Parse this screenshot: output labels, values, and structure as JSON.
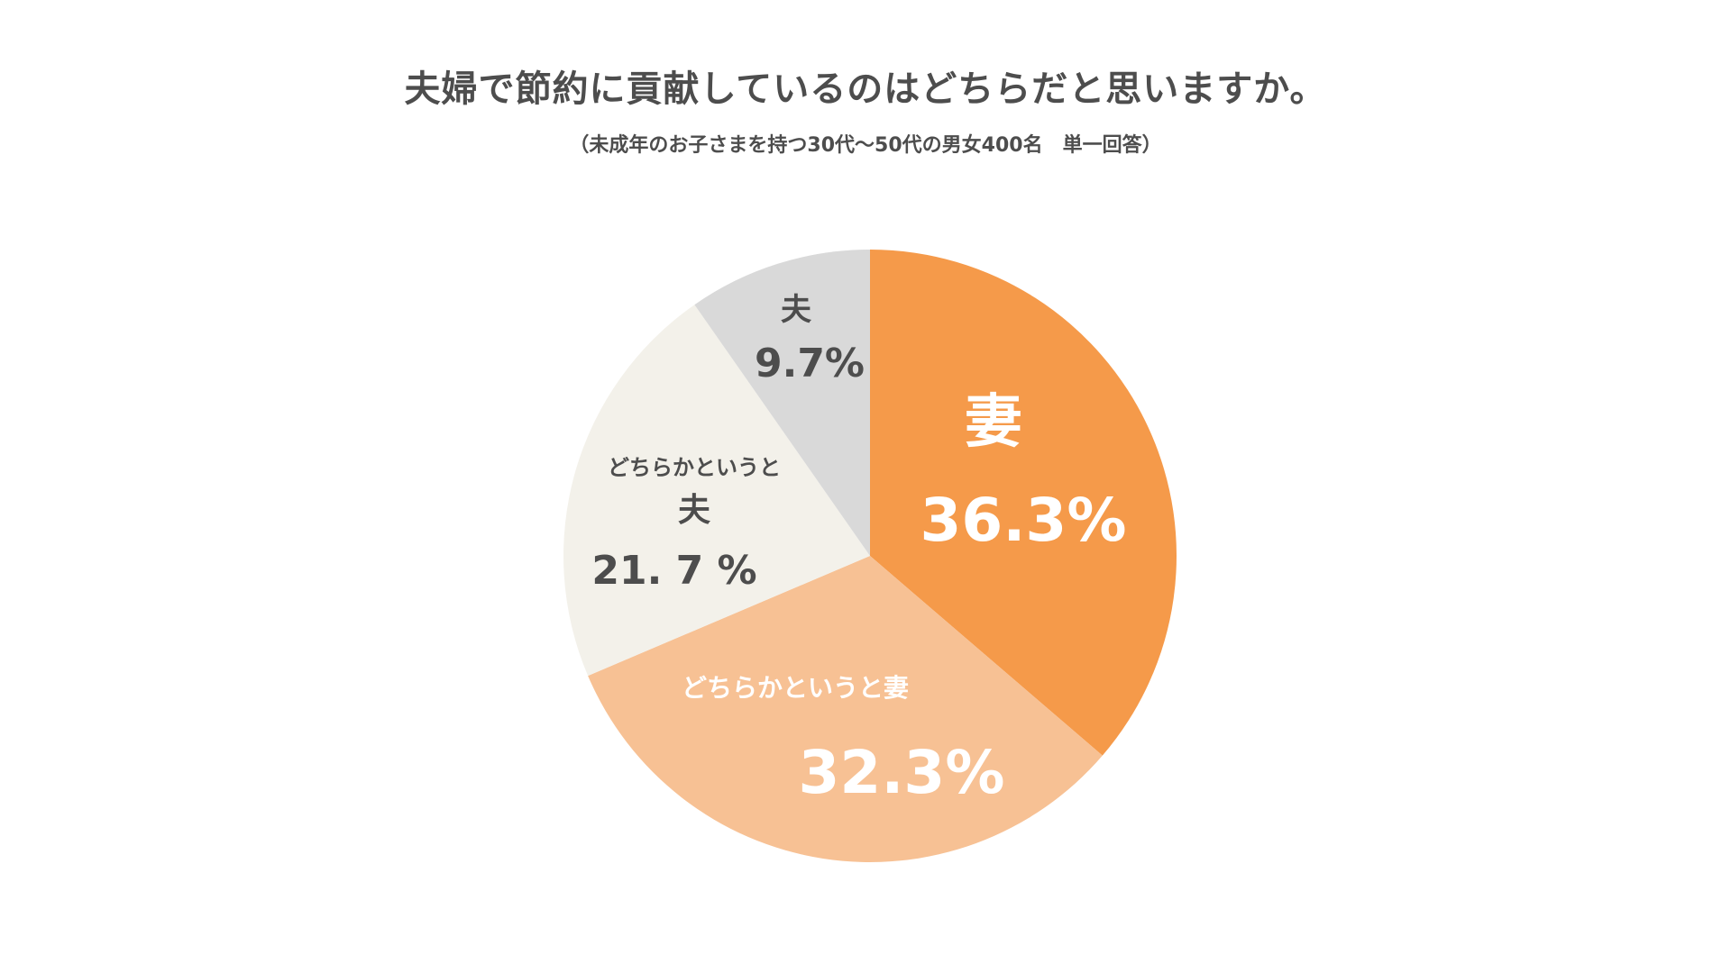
{
  "title": "夫婦で節約に貢献しているのはどちらだと思いますか。",
  "subtitle": "（未成年のお子さまを持つ30代〜50代の男女400名　単一回答）",
  "chart_data": {
    "type": "pie",
    "title": "夫婦で節約に貢献しているのはどちらだと思いますか。",
    "subtitle": "（未成年のお子さまを持つ30代〜50代の男女400名　単一回答）",
    "slices": [
      {
        "name": "妻",
        "value": 36.3,
        "value_label": "36.3%",
        "color": "#f59a4a",
        "text_color": "#ffffff"
      },
      {
        "name": "どちらかというと妻",
        "value": 32.3,
        "value_label": "32.3%",
        "color": "#f7c194",
        "text_color": "#ffffff"
      },
      {
        "name_line1": "どちらかというと",
        "name": "夫",
        "value": 21.7,
        "value_label": "21. 7 %",
        "color": "#f3f1ea",
        "text_color": "#4d4d4d"
      },
      {
        "name": "夫",
        "value": 9.7,
        "value_label": "9.7%",
        "color": "#d9d9d9",
        "text_color": "#4d4d4d"
      }
    ],
    "start_angle": "12 o'clock",
    "direction": "clockwise",
    "legend": "none"
  }
}
